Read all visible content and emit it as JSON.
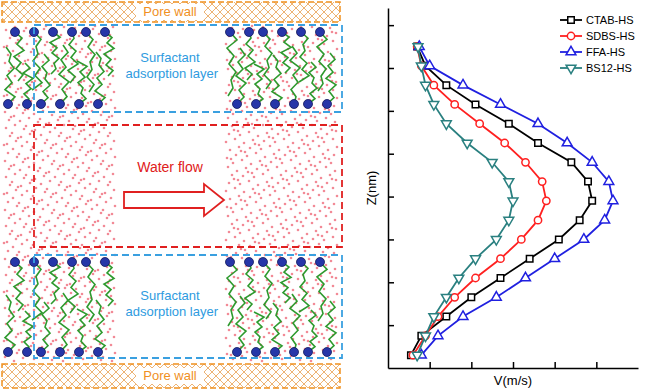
{
  "chart_data": {
    "type": "line",
    "x_label": "V(m/s)",
    "y_label": "Z(nm)",
    "xlim": [
      0,
      6
    ],
    "xticks": [
      1,
      2,
      3,
      4,
      5
    ],
    "ylim": [
      0,
      8.4
    ],
    "yticks": [
      1,
      2,
      3,
      4,
      5,
      6,
      7,
      8
    ],
    "tick_labels": false,
    "grid": false,
    "legend": "upper right",
    "series": [
      {
        "name": "CTAB-HS",
        "color": "#000000",
        "marker": "square",
        "x": [
          0.55,
          0.8,
          1.4,
          2.0,
          2.7,
          3.4,
          4.1,
          4.6,
          4.9,
          4.8,
          4.4,
          3.6,
          2.9,
          2.1,
          1.4,
          0.9,
          0.7
        ],
        "values": [
          0.3,
          0.75,
          1.2,
          1.65,
          2.1,
          2.55,
          3.0,
          3.45,
          3.9,
          4.35,
          4.8,
          5.25,
          5.7,
          6.15,
          6.6,
          7.05,
          7.5
        ]
      },
      {
        "name": "SDBS-HS",
        "color": "#ff2020",
        "marker": "circle",
        "x": [
          0.6,
          0.9,
          1.2,
          1.6,
          2.1,
          2.7,
          3.2,
          3.6,
          3.8,
          3.7,
          3.3,
          2.8,
          2.2,
          1.6,
          1.1,
          0.8,
          0.7
        ],
        "values": [
          0.3,
          0.75,
          1.2,
          1.65,
          2.1,
          2.55,
          3.0,
          3.45,
          3.9,
          4.35,
          4.8,
          5.25,
          5.7,
          6.15,
          6.6,
          7.05,
          7.5
        ]
      },
      {
        "name": "FFA-HS",
        "color": "#2020e0",
        "marker": "triangle-up",
        "x": [
          0.8,
          1.2,
          1.8,
          2.6,
          3.3,
          4.0,
          4.7,
          5.2,
          5.4,
          5.3,
          4.9,
          4.3,
          3.6,
          2.7,
          1.8,
          1.0,
          0.75
        ],
        "values": [
          0.3,
          0.75,
          1.2,
          1.65,
          2.1,
          2.55,
          3.0,
          3.45,
          3.9,
          4.35,
          4.8,
          5.25,
          5.7,
          6.15,
          6.6,
          7.05,
          7.5
        ]
      },
      {
        "name": "BS12-HS",
        "color": "#2a8080",
        "marker": "triangle-down",
        "x": [
          0.7,
          0.9,
          1.1,
          1.4,
          1.7,
          2.1,
          2.6,
          2.9,
          3.0,
          2.9,
          2.5,
          1.9,
          1.4,
          1.1,
          0.9,
          0.8,
          0.72
        ],
        "values": [
          0.3,
          0.75,
          1.2,
          1.65,
          2.1,
          2.55,
          3.0,
          3.45,
          3.9,
          4.35,
          4.8,
          5.25,
          5.7,
          6.15,
          6.6,
          7.05,
          7.5
        ]
      }
    ]
  },
  "diagram": {
    "pore_wall_labels": [
      "Pore wall",
      "Pore wall"
    ],
    "adsorption_labels": [
      "Surfactant adsorption layer",
      "Surfactant adsorption layer"
    ],
    "flow_label": "Water flow"
  }
}
